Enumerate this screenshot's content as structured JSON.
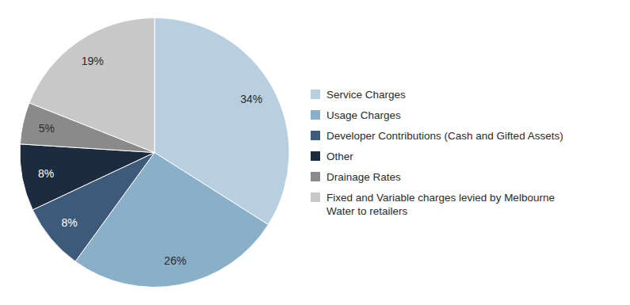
{
  "chart_data": {
    "type": "pie",
    "categories": [
      "Service Charges",
      "Usage Charges",
      "Developer Contributions (Cash and Gifted Assets)",
      "Other",
      "Drainage Rates",
      "Fixed and Variable charges levied by Melbourne\n Water to retailers"
    ],
    "values": [
      34,
      26,
      8,
      8,
      5,
      19
    ],
    "value_labels": [
      "34%",
      "26%",
      "8%",
      "8%",
      "5%",
      "19%"
    ],
    "colors": [
      "#b8cfe0",
      "#8aafc8",
      "#3d5a7a",
      "#1c2c3e",
      "#8a8a8a",
      "#c8c8c8"
    ],
    "data_labels": true,
    "legend": "right"
  }
}
